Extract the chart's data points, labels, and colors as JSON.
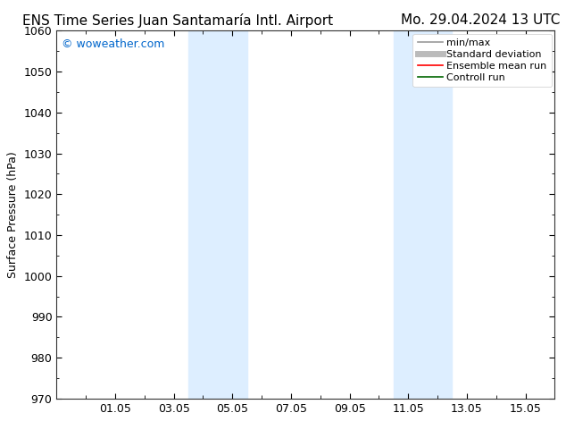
{
  "title_left": "ENS Time Series Juan Santamaría Intl. Airport",
  "title_right": "Mo. 29.04.2024 13 UTC",
  "ylabel": "Surface Pressure (hPa)",
  "ylim": [
    970,
    1060
  ],
  "yticks": [
    970,
    980,
    990,
    1000,
    1010,
    1020,
    1030,
    1040,
    1050,
    1060
  ],
  "xlim": [
    0,
    17
  ],
  "xtick_labels": [
    "01.05",
    "03.05",
    "05.05",
    "07.05",
    "09.05",
    "11.05",
    "13.05",
    "15.05"
  ],
  "xtick_positions": [
    2,
    4,
    6,
    8,
    10,
    12,
    14,
    16
  ],
  "watermark": "© woweather.com",
  "watermark_color": "#0066cc",
  "background_color": "#ffffff",
  "plot_bg_color": "#ffffff",
  "shaded_bands": [
    {
      "x_start": 4.5,
      "x_end": 6.5,
      "color": "#ddeeff"
    },
    {
      "x_start": 11.5,
      "x_end": 13.5,
      "color": "#ddeeff"
    }
  ],
  "legend_entries": [
    {
      "label": "min/max",
      "color": "#999999",
      "lw": 1.2,
      "style": "solid"
    },
    {
      "label": "Standard deviation",
      "color": "#bbbbbb",
      "lw": 5,
      "style": "solid"
    },
    {
      "label": "Ensemble mean run",
      "color": "#ff0000",
      "lw": 1.2,
      "style": "solid"
    },
    {
      "label": "Controll run",
      "color": "#006600",
      "lw": 1.2,
      "style": "solid"
    }
  ],
  "title_fontsize": 11,
  "axis_fontsize": 9,
  "tick_fontsize": 9,
  "legend_fontsize": 8,
  "watermark_fontsize": 9
}
